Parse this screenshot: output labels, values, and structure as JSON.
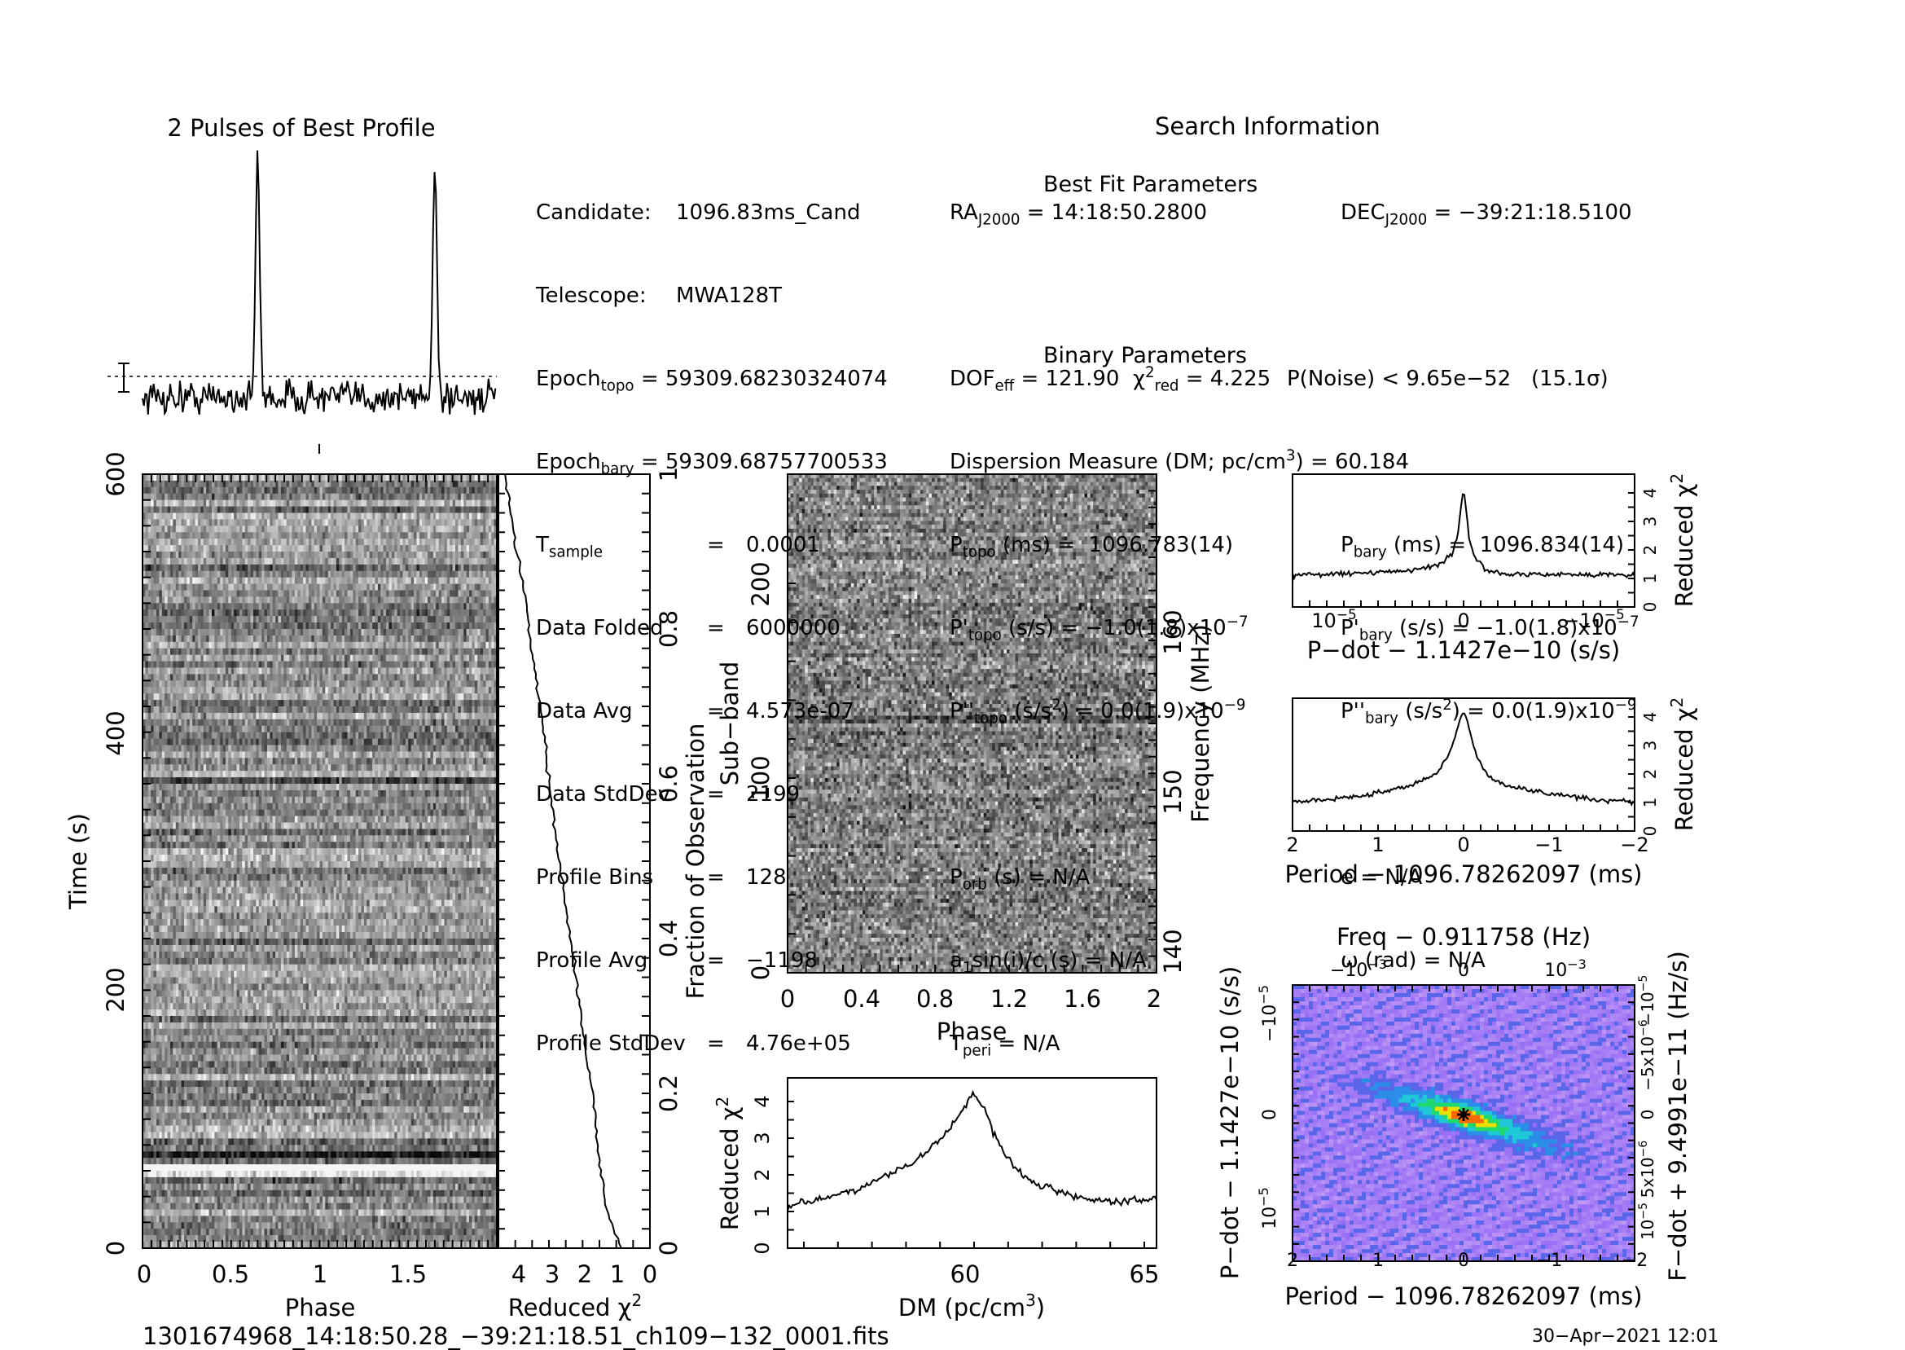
{
  "header": {
    "profile_title": "2 Pulses of Best Profile",
    "search_title": "Search Information",
    "bestfit_title": "Best Fit Parameters",
    "binary_title": "Binary Parameters"
  },
  "candidate_info": [
    {
      "label": "Candidate:",
      "value": "1096.83ms_Cand"
    },
    {
      "label": "Telescope:",
      "value": "MWA128T"
    },
    {
      "label": "Epoch",
      "sub": "topo",
      "value": "= 59309.68230324074"
    },
    {
      "label": "Epoch",
      "sub": "bary",
      "value": "= 59309.68757700533"
    },
    {
      "label": "T",
      "sub": "sample",
      "eq": "=",
      "value": "0.0001"
    },
    {
      "label": "Data Folded",
      "eq": "=",
      "value": "6000000"
    },
    {
      "label": "Data Avg",
      "eq": "=",
      "value": "4.573e-07"
    },
    {
      "label": "Data StdDev",
      "eq": "=",
      "value": "2199"
    },
    {
      "label": "Profile Bins",
      "eq": "=",
      "value": "128"
    },
    {
      "label": "Profile Avg",
      "eq": "=",
      "value": "−1198"
    },
    {
      "label": "Profile StdDev",
      "eq": "=",
      "value": "4.76e+05"
    }
  ],
  "search_info": {
    "ra_label": "RA",
    "ra_sub": "J2000",
    "ra_value": "= 14:18:50.2800",
    "dec_label": "DEC",
    "dec_sub": "J2000",
    "dec_value": "= −39:21:18.5100"
  },
  "best_fit": {
    "dof_label": "DOF",
    "dof_sub": "eff",
    "dof_value": "= 121.90",
    "chi_label": "χ",
    "chi_sup": "2",
    "chi_sub": "red",
    "chi_value": "= 4.225",
    "pnoise": "P(Noise) < 9.65e−52   (15.1σ)",
    "dm_text": "Dispersion Measure (DM; pc/cm",
    "dm_sup": "3",
    "dm_value": ") = 60.184",
    "ptopo_label": "P",
    "ptopo_sub": "topo",
    "ptopo_value": "(ms) =  1096.783(14)",
    "pbary_label": "P",
    "pbary_sub": "bary",
    "pbary_value": "(ms) =  1096.834(14)",
    "pdtopo_label": "P'",
    "pdtopo_sub": "topo",
    "pdtopo_value": "(s/s) = −1.0(1.8)x10",
    "pdtopo_exp": "−7",
    "pdbary_label": "P'",
    "pdbary_sub": "bary",
    "pdbary_value": "(s/s) = −1.0(1.8)x10",
    "pdbary_exp": "−7",
    "pddtopo_label": "P''",
    "pddtopo_sub": "topo",
    "pddtopo_value": "(s/s",
    "pddtopo_sup": "2",
    "pddtopo_value2": ") = 0.0(1.9)x10",
    "pddtopo_exp": "−9",
    "pddbary_label": "P''",
    "pddbary_sub": "bary",
    "pddbary_value": "(s/s",
    "pddbary_sup": "2",
    "pddbary_value2": ") = 0.0(1.9)x10",
    "pddbary_exp": "−9"
  },
  "binary": {
    "porb_label": "P",
    "porb_sub": "orb",
    "porb_value": "(s) = N/A",
    "e_text": "e = N/A",
    "a1_label": "a",
    "a1_sub": "1",
    "a1_value": "sin(i)/c (s) = N/A",
    "omega_text": "ω (rad) = N/A",
    "tperi_label": "T",
    "tperi_sub": "peri",
    "tperi_value": "= N/A"
  },
  "footer": {
    "filename": "1301674968_14:18:50.28_−39:21:18.51_ch109−132_0001.fits",
    "date": "30−Apr−2021 12:01"
  },
  "chart_data": [
    {
      "id": "time-phase",
      "type": "heatmap",
      "xlabel": "Phase",
      "ylabel": "Time (s)",
      "xlim": [
        0,
        2
      ],
      "ylim": [
        0,
        600
      ],
      "xticks": [
        "0",
        "0.5",
        "1",
        "1.5"
      ],
      "yticks": [
        "0",
        "200",
        "400",
        "600"
      ]
    },
    {
      "id": "chi-vs-fraction",
      "type": "line",
      "xlabel_main": "Reduced χ",
      "xlabel_sup": "2",
      "ylabel": "Fraction of Observation",
      "xticks": [
        "4",
        "3",
        "2",
        "1",
        "0"
      ],
      "yticks": [
        "0",
        "0.2",
        "0.4",
        "0.6",
        "0.8",
        "1"
      ],
      "xlim": [
        4.5,
        0
      ],
      "ylim": [
        0,
        1
      ],
      "series": [
        {
          "fraction": [
            0.0,
            0.05,
            0.1,
            0.15,
            0.2,
            0.25,
            0.3,
            0.35,
            0.4,
            0.45,
            0.5,
            0.55,
            0.6,
            0.65,
            0.7,
            0.75,
            0.8,
            0.85,
            0.9,
            0.95,
            1.0
          ],
          "chi": [
            0.85,
            1.3,
            1.45,
            1.6,
            1.7,
            1.9,
            2.05,
            2.2,
            2.35,
            2.55,
            2.7,
            2.85,
            3.0,
            3.1,
            3.25,
            3.45,
            3.6,
            3.75,
            3.95,
            4.15,
            4.3
          ]
        }
      ]
    },
    {
      "id": "subband-phase",
      "type": "heatmap",
      "xlabel": "Phase",
      "ylabel": "Sub−band",
      "ylabel_right": "Frequency (MHz)",
      "xticks": [
        "0",
        "0.4",
        "0.8",
        "1.2",
        "1.6",
        "2"
      ],
      "yticks": [
        "0",
        "100",
        "200"
      ],
      "yticks_right": [
        "140",
        "150",
        "160"
      ],
      "xlim": [
        0,
        2
      ],
      "ylim": [
        0,
        256
      ]
    },
    {
      "id": "dm-chi",
      "type": "line",
      "xlabel_main": "DM (pc/cm",
      "xlabel_sup": "3",
      "xlabel_end": ")",
      "ylabel_main": "Reduced χ",
      "ylabel_sup": "2",
      "xticks": [
        "60",
        "65"
      ],
      "yticks": [
        "0",
        "1",
        "2",
        "3",
        "4"
      ],
      "xlim": [
        55,
        65.3
      ],
      "ylim": [
        0,
        4.6
      ],
      "series": [
        {
          "dm": [
            55.0,
            56.0,
            57.0,
            57.5,
            58.0,
            58.5,
            59.0,
            59.5,
            60.0,
            60.2,
            60.5,
            61.0,
            61.5,
            62.0,
            62.5,
            63.0,
            63.5,
            64.0,
            64.5,
            65.0,
            65.3
          ],
          "chi": [
            1.1,
            1.35,
            1.6,
            1.85,
            2.1,
            2.3,
            2.7,
            3.2,
            3.9,
            4.2,
            3.7,
            2.6,
            2.0,
            1.7,
            1.55,
            1.4,
            1.3,
            1.25,
            1.3,
            1.3,
            1.35
          ]
        }
      ]
    },
    {
      "id": "pdot-chi",
      "type": "line",
      "xlabel": "P−dot − 1.1427e−10 (s/s)",
      "ylabel_main": "Reduced χ",
      "ylabel_sup": "2",
      "xticks": [
        "10",
        "0",
        "−10"
      ],
      "xtick_exp": "−5",
      "yticks": [
        "0",
        "1",
        "2",
        "3",
        "4"
      ],
      "xlim": [
        1.6,
        -1.6
      ],
      "ylim": [
        0,
        4.6
      ],
      "series": [
        {
          "x": [
            1.6,
            1.2,
            0.8,
            0.4,
            0.2,
            0.1,
            0.05,
            0.02,
            0.0,
            -0.02,
            -0.05,
            -0.1,
            -0.2,
            -0.4,
            -0.8,
            -1.2,
            -1.6
          ],
          "chi": [
            1.1,
            1.15,
            1.2,
            1.3,
            1.5,
            1.9,
            2.6,
            3.6,
            4.25,
            3.5,
            2.5,
            1.7,
            1.3,
            1.1,
            1.15,
            1.1,
            1.1
          ]
        }
      ]
    },
    {
      "id": "period-chi",
      "type": "line",
      "xlabel": "Period − 1096.78262097 (ms)",
      "ylabel_main": "Reduced χ",
      "ylabel_sup": "2",
      "xticks": [
        "2",
        "1",
        "0",
        "−1",
        "−2"
      ],
      "yticks": [
        "0",
        "1",
        "2",
        "3",
        "4"
      ],
      "xlim": [
        2,
        -2
      ],
      "ylim": [
        0,
        4.6
      ],
      "series": [
        {
          "x": [
            2.0,
            1.5,
            1.0,
            0.6,
            0.3,
            0.15,
            0.05,
            0.0,
            -0.05,
            -0.15,
            -0.3,
            -0.6,
            -1.0,
            -1.5,
            -2.0
          ],
          "chi": [
            1.0,
            1.1,
            1.3,
            1.6,
            2.0,
            2.8,
            3.8,
            4.2,
            3.7,
            2.6,
            1.8,
            1.5,
            1.3,
            1.1,
            1.0
          ]
        }
      ]
    },
    {
      "id": "period-pdot-map",
      "type": "heatmap",
      "title": "Freq − 0.911758 (Hz)",
      "xlabel": "Period − 1096.78262097 (ms)",
      "ylabel": "P−dot − 1.1427e−10 (s/s)",
      "ylabel_right": "F−dot + 9.4991e−11 (Hz/s)",
      "xticks": [
        "2",
        "1",
        "0",
        "−1",
        "−2"
      ],
      "top_ticks": [
        "−10",
        "0",
        "10"
      ],
      "top_tick_exp": "−3",
      "yticks": [
        "10",
        "0",
        "−10"
      ],
      "ytick_exp": "−5",
      "yticks_right": [
        "10",
        "5x10",
        "0",
        "−5x10",
        "−10"
      ],
      "yticks_right_exp": [
        "−5",
        "−6",
        "",
        "−6",
        "−5"
      ],
      "xlim": [
        2,
        -2
      ],
      "ylim": [
        1.6,
        -1.6
      ]
    },
    {
      "id": "pulse-profile",
      "type": "line",
      "title": "2 Pulses of Best Profile",
      "xlim": [
        0,
        2
      ],
      "peaks_phase": [
        0.65,
        1.65
      ]
    }
  ],
  "colors": {
    "map_low": "#5e63e8",
    "map_mid": "#20c8d8",
    "map_high": "#ff6600",
    "marker": "#000000"
  }
}
